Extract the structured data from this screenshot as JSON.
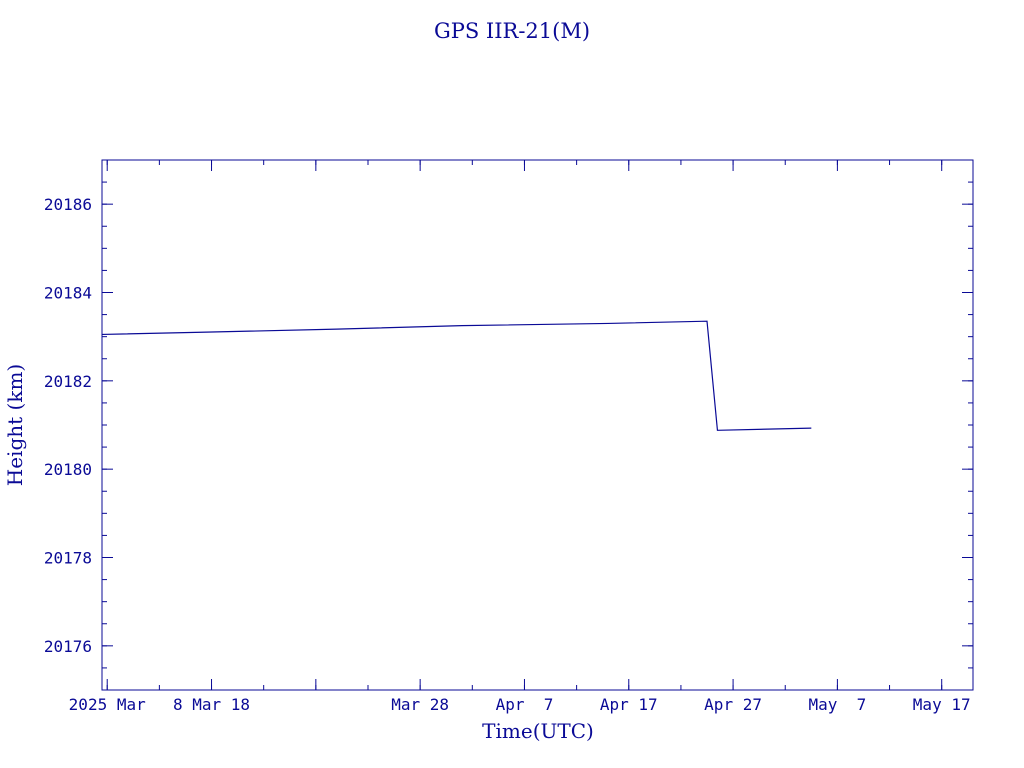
{
  "chart_data": {
    "type": "line",
    "title": "GPS IIR-21(M)",
    "xlabel": "Time(UTC)",
    "ylabel": "Height (km)",
    "ylim": [
      20175,
      20187
    ],
    "xlim": [
      "2025-02-25T12:00",
      "2025-05-20T00:00"
    ],
    "y_ticks": [
      20176,
      20178,
      20180,
      20182,
      20184,
      20186
    ],
    "y_minor_step": 0.5,
    "x_ticks": [
      {
        "date": "2025-02-26",
        "label": "2025 Mar"
      },
      {
        "date": "2025-03-08",
        "label": "8 Mar 18"
      },
      {
        "date": "2025-03-18",
        "label": ""
      },
      {
        "date": "2025-03-28",
        "label": "Mar 28"
      },
      {
        "date": "2025-04-07",
        "label": "Apr  7"
      },
      {
        "date": "2025-04-17",
        "label": "Apr 17"
      },
      {
        "date": "2025-04-27",
        "label": "Apr 27"
      },
      {
        "date": "2025-05-07",
        "label": "May  7"
      },
      {
        "date": "2025-05-17",
        "label": "May 17"
      }
    ],
    "x_minor_step_days": 5,
    "grid": false,
    "color": "#0a0a96",
    "series": [
      {
        "points": [
          {
            "x": "2025-02-25T12:00",
            "y": 20183.05
          },
          {
            "x": "2025-03-07T00:00",
            "y": 20183.1
          },
          {
            "x": "2025-03-20T00:00",
            "y": 20183.17
          },
          {
            "x": "2025-04-01T00:00",
            "y": 20183.25
          },
          {
            "x": "2025-04-15T00:00",
            "y": 20183.3
          },
          {
            "x": "2025-04-24T12:00",
            "y": 20183.35
          },
          {
            "x": "2025-04-25T12:00",
            "y": 20180.88
          },
          {
            "x": "2025-05-04T12:00",
            "y": 20180.93
          }
        ]
      }
    ]
  }
}
